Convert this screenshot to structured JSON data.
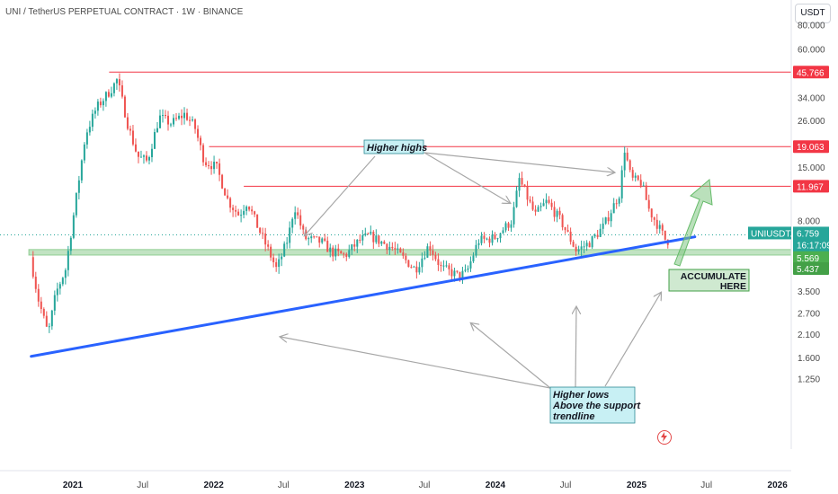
{
  "header": {
    "title": "UNI / TetherUS PERPETUAL CONTRACT · 1W · BINANCE",
    "currency_button": "USDT"
  },
  "chart_data": {
    "type": "candlestick",
    "symbol": "UNIUSDT.P",
    "timeframe": "1W",
    "y_scale": "log",
    "ylim": [
      1.1,
      100000
    ],
    "y_ticks": [
      "80.000",
      "60.000",
      "34.000",
      "26.000",
      "15.000",
      "8.000",
      "3.500",
      "2.700",
      "2.100",
      "1.600",
      "1.250"
    ],
    "x_ticks": [
      {
        "label": "2021",
        "date": "2021-01-01",
        "bold": true
      },
      {
        "label": "Jul",
        "date": "2021-07-01",
        "bold": false
      },
      {
        "label": "2022",
        "date": "2022-01-01",
        "bold": true
      },
      {
        "label": "Jul",
        "date": "2022-07-01",
        "bold": false
      },
      {
        "label": "2023",
        "date": "2023-01-01",
        "bold": true
      },
      {
        "label": "Jul",
        "date": "2023-07-01",
        "bold": false
      },
      {
        "label": "2024",
        "date": "2024-01-01",
        "bold": true
      },
      {
        "label": "Jul",
        "date": "2024-07-01",
        "bold": false
      },
      {
        "label": "2025",
        "date": "2025-01-01",
        "bold": true
      },
      {
        "label": "Jul",
        "date": "2025-07-01",
        "bold": false
      },
      {
        "label": "2026",
        "date": "2026-01-01",
        "bold": true
      }
    ],
    "price_path": [
      {
        "date": "2020-09-20",
        "price": 5.2
      },
      {
        "date": "2020-10-10",
        "price": 3.2
      },
      {
        "date": "2020-11-05",
        "price": 2.1
      },
      {
        "date": "2020-11-25",
        "price": 3.4
      },
      {
        "date": "2020-12-20",
        "price": 4.5
      },
      {
        "date": "2021-01-10",
        "price": 8.5
      },
      {
        "date": "2021-02-10",
        "price": 22
      },
      {
        "date": "2021-03-10",
        "price": 30
      },
      {
        "date": "2021-04-20",
        "price": 38
      },
      {
        "date": "2021-05-03",
        "price": 42
      },
      {
        "date": "2021-06-01",
        "price": 24
      },
      {
        "date": "2021-06-25",
        "price": 17
      },
      {
        "date": "2021-07-20",
        "price": 16
      },
      {
        "date": "2021-08-20",
        "price": 27
      },
      {
        "date": "2021-09-20",
        "price": 25
      },
      {
        "date": "2021-10-25",
        "price": 28
      },
      {
        "date": "2021-11-20",
        "price": 24
      },
      {
        "date": "2021-12-15",
        "price": 16
      },
      {
        "date": "2022-01-15",
        "price": 15
      },
      {
        "date": "2022-02-15",
        "price": 10
      },
      {
        "date": "2022-03-15",
        "price": 8.5
      },
      {
        "date": "2022-04-05",
        "price": 10
      },
      {
        "date": "2022-05-01",
        "price": 7.5
      },
      {
        "date": "2022-06-01",
        "price": 5.5
      },
      {
        "date": "2022-06-20",
        "price": 4.5
      },
      {
        "date": "2022-07-20",
        "price": 6.5
      },
      {
        "date": "2022-08-05",
        "price": 9.5
      },
      {
        "date": "2022-09-01",
        "price": 6.5
      },
      {
        "date": "2022-10-15",
        "price": 6.2
      },
      {
        "date": "2022-11-10",
        "price": 5.5
      },
      {
        "date": "2022-12-15",
        "price": 5.3
      },
      {
        "date": "2023-01-20",
        "price": 6.3
      },
      {
        "date": "2023-02-15",
        "price": 6.7
      },
      {
        "date": "2023-04-15",
        "price": 5.8
      },
      {
        "date": "2023-06-15",
        "price": 4.5
      },
      {
        "date": "2023-07-20",
        "price": 6.0
      },
      {
        "date": "2023-08-20",
        "price": 4.6
      },
      {
        "date": "2023-10-01",
        "price": 4.2
      },
      {
        "date": "2023-10-25",
        "price": 4.3
      },
      {
        "date": "2023-11-25",
        "price": 6.3
      },
      {
        "date": "2024-01-05",
        "price": 6.5
      },
      {
        "date": "2024-02-20",
        "price": 8.0
      },
      {
        "date": "2024-03-10",
        "price": 13
      },
      {
        "date": "2024-04-20",
        "price": 8.5
      },
      {
        "date": "2024-05-20",
        "price": 10
      },
      {
        "date": "2024-06-25",
        "price": 8.0
      },
      {
        "date": "2024-08-05",
        "price": 5.6
      },
      {
        "date": "2024-09-10",
        "price": 6.2
      },
      {
        "date": "2024-10-15",
        "price": 7.5
      },
      {
        "date": "2024-11-25",
        "price": 11
      },
      {
        "date": "2024-12-08",
        "price": 18.5
      },
      {
        "date": "2024-12-25",
        "price": 13
      },
      {
        "date": "2025-01-20",
        "price": 12.5
      },
      {
        "date": "2025-02-10",
        "price": 9
      },
      {
        "date": "2025-03-05",
        "price": 7.5
      },
      {
        "date": "2025-03-25",
        "price": 6.3
      }
    ],
    "horizontal_levels": [
      {
        "price": 45.766,
        "label": "45.766",
        "color": "#f23645",
        "start_date": "2021-04-05"
      },
      {
        "price": 19.063,
        "label": "19.063",
        "color": "#f23645",
        "start_date": "2021-12-20"
      },
      {
        "price": 11.967,
        "label": "11.967",
        "color": "#f23645",
        "start_date": "2022-03-20"
      }
    ],
    "support_zone": {
      "top": 5.569,
      "bottom": 5.437,
      "top_label": "5.569",
      "bottom_label": "5.437",
      "color": "#4caf50"
    },
    "trendline": {
      "start": {
        "date": "2020-09-15",
        "price": 1.62
      },
      "end": {
        "date": "2025-06-01",
        "price": 6.6
      },
      "color": "#2962ff"
    },
    "current_price": {
      "symbol": "UNIUSDT.P",
      "value": "6.759",
      "countdown": "16:17:09",
      "color": "#26a69a"
    },
    "dotted_line": {
      "price": 6.759,
      "color": "#26a69a"
    },
    "annotations": {
      "higher_highs": "Higher highs",
      "higher_lows": [
        "Higher lows",
        "Above the support",
        "trendline"
      ],
      "accumulate": [
        "ACCUMULATE",
        "HERE"
      ]
    }
  }
}
